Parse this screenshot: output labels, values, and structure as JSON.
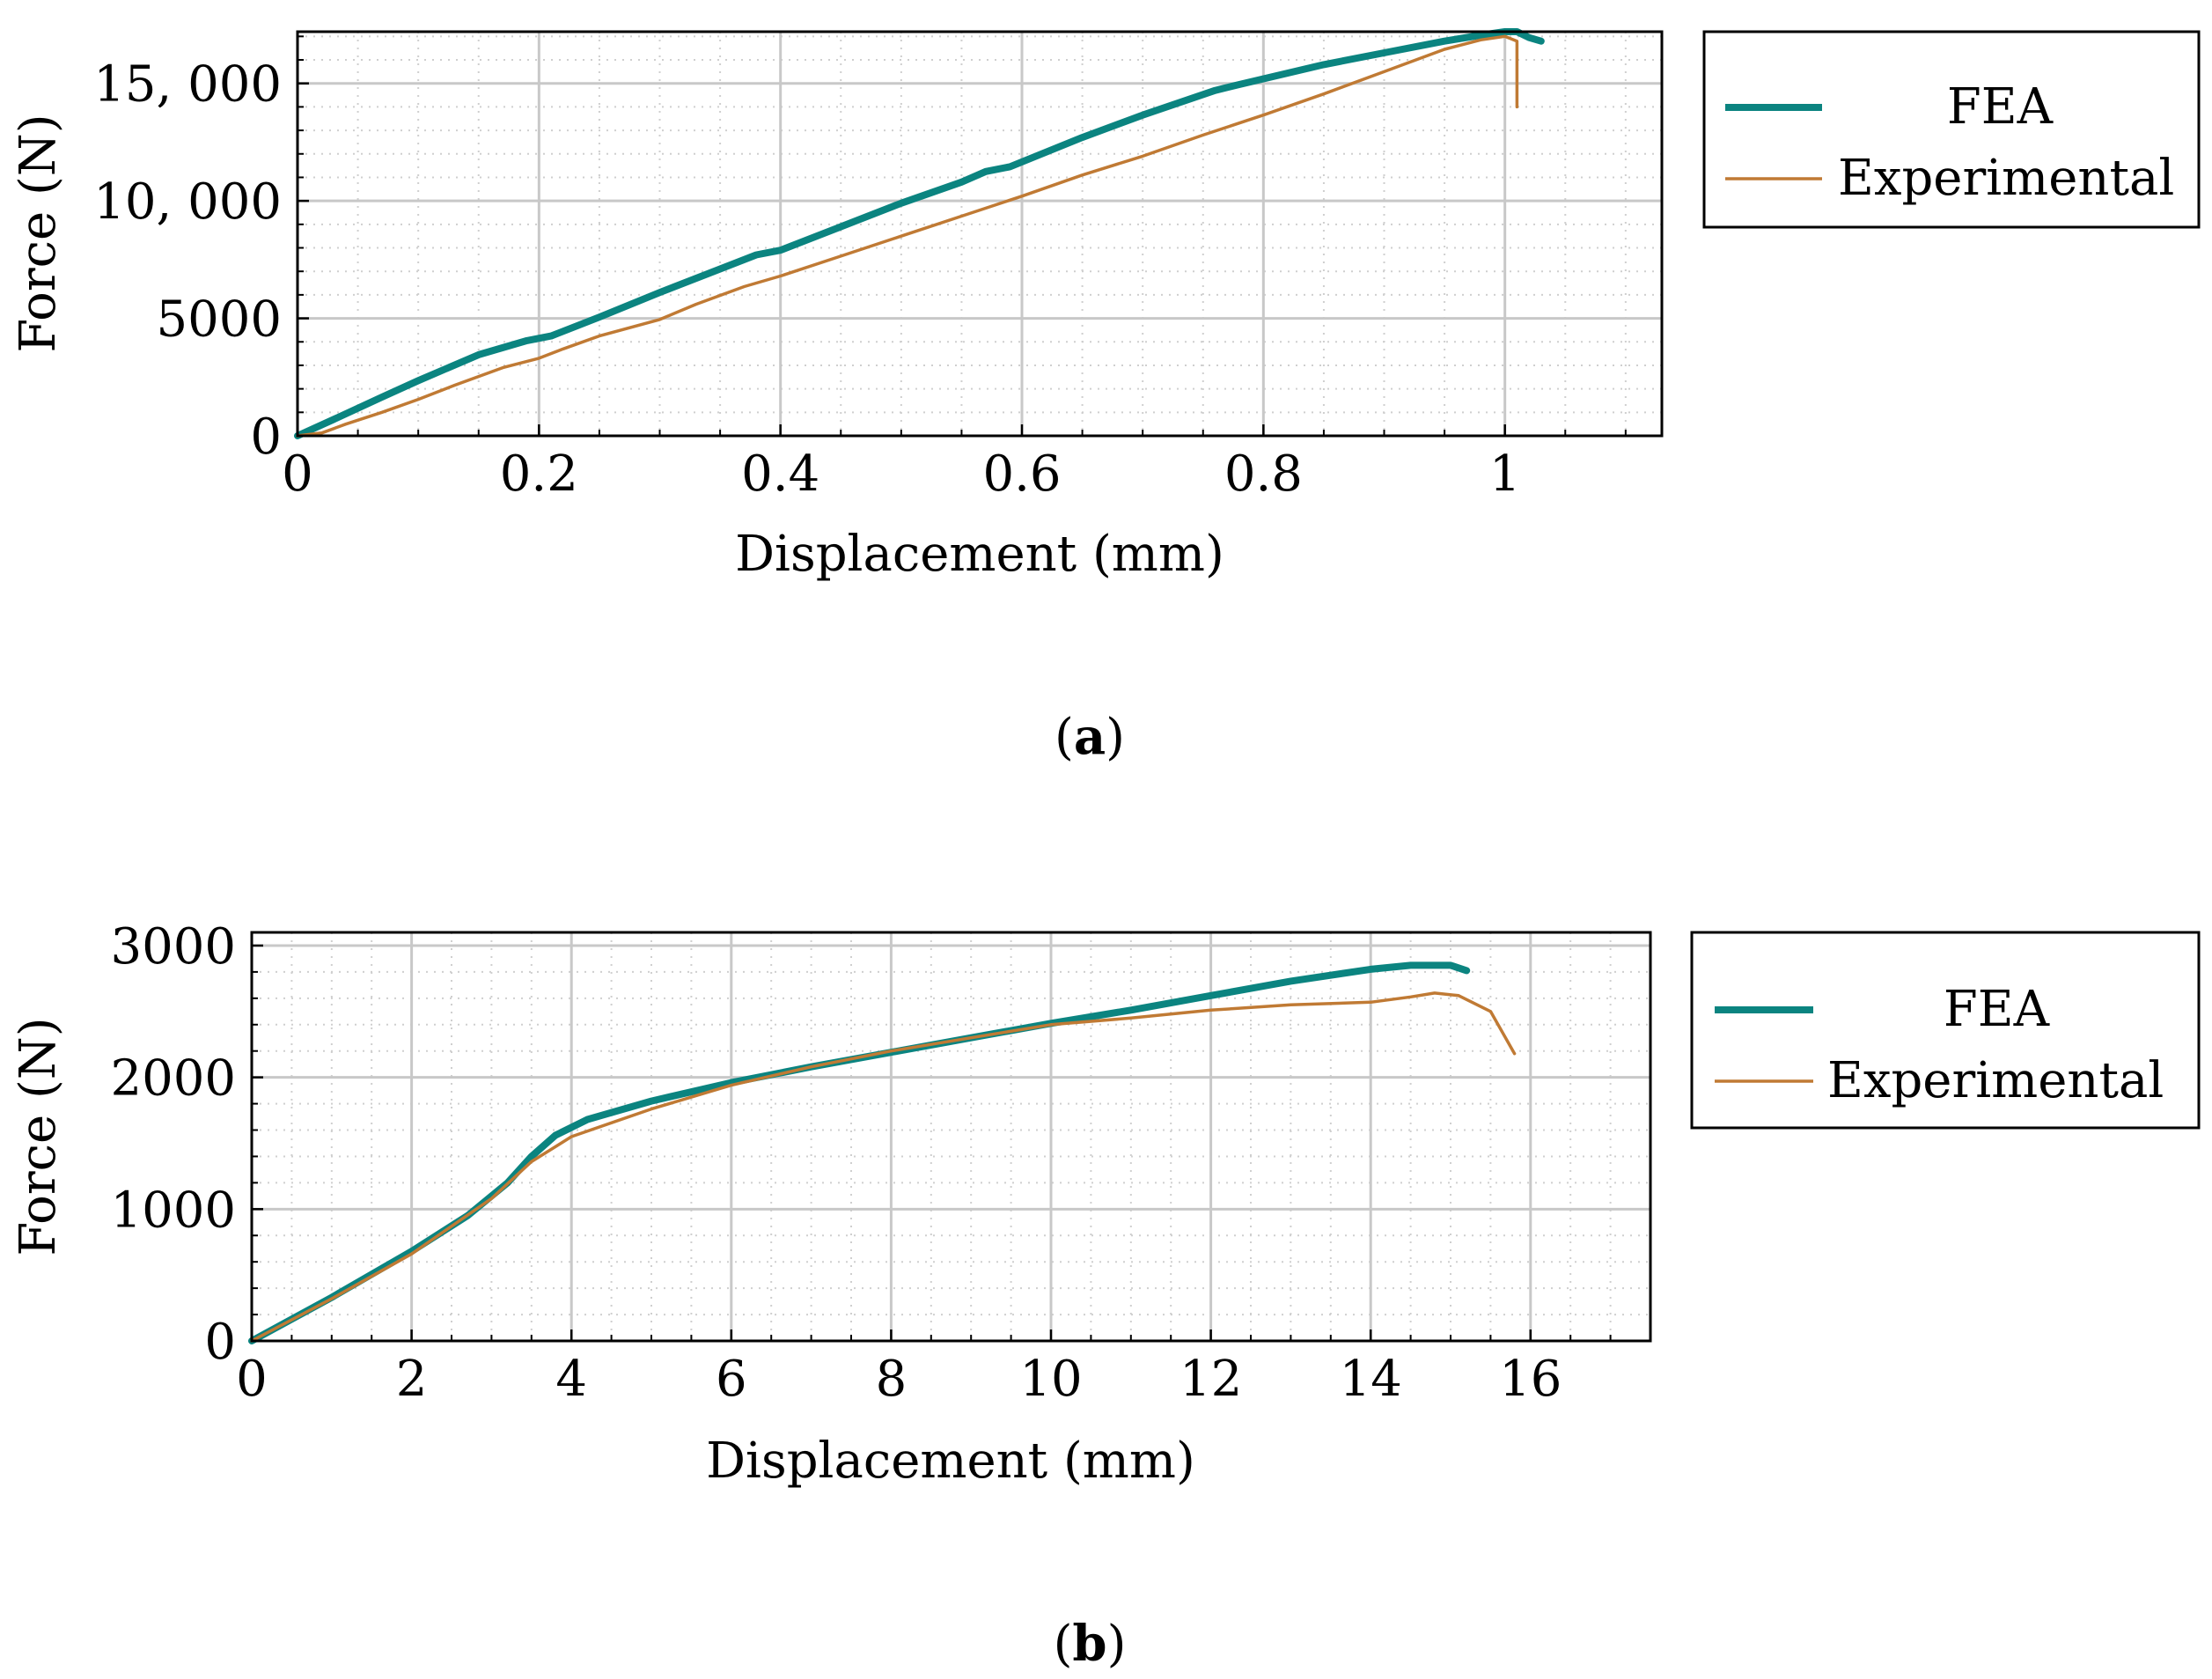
{
  "colors": {
    "fea": "#0b8480",
    "experimental": "#c07a34",
    "grid_major": "#c8c8c8",
    "grid_minor": "#cfcfcf",
    "axis": "#000000"
  },
  "chart_data": [
    {
      "type": "line",
      "caption": "(a)",
      "caption_letter": "a",
      "xlabel": "Displacement (mm)",
      "ylabel": "Force (N)",
      "xlim": [
        0,
        1.13
      ],
      "ylim": [
        0,
        17200
      ],
      "xticks": [
        0,
        0.2,
        0.4,
        0.6,
        0.8,
        1
      ],
      "xtick_labels": [
        "0",
        "0.2",
        "0.4",
        "0.6",
        "0.8",
        "1"
      ],
      "yticks": [
        0,
        5000,
        10000,
        15000
      ],
      "ytick_labels": [
        "0",
        "5000",
        "10, 000",
        "15, 000"
      ],
      "grid": "major and minor",
      "legend_position": "outside right",
      "series": [
        {
          "name": "FEA",
          "color_key": "fea",
          "x": [
            0,
            0.03,
            0.07,
            0.1,
            0.15,
            0.19,
            0.21,
            0.25,
            0.3,
            0.35,
            0.38,
            0.4,
            0.45,
            0.5,
            0.55,
            0.57,
            0.59,
            0.65,
            0.7,
            0.76,
            0.78,
            0.85,
            0.9,
            0.95,
            0.98,
            1.0,
            1.01,
            1.02,
            1.03
          ],
          "y": [
            0,
            700,
            1650,
            2350,
            3450,
            4050,
            4250,
            5050,
            6100,
            7100,
            7700,
            7900,
            8900,
            9900,
            10800,
            11250,
            11450,
            12700,
            13650,
            14700,
            14950,
            15800,
            16300,
            16800,
            17050,
            17200,
            17200,
            16950,
            16800
          ]
        },
        {
          "name": "Experimental",
          "color_key": "experimental",
          "x": [
            0,
            0.02,
            0.04,
            0.07,
            0.1,
            0.13,
            0.17,
            0.2,
            0.22,
            0.25,
            0.3,
            0.33,
            0.37,
            0.4,
            0.45,
            0.5,
            0.55,
            0.6,
            0.65,
            0.7,
            0.75,
            0.8,
            0.85,
            0.9,
            0.95,
            0.98,
            1.0,
            1.005,
            1.01,
            1.01
          ],
          "y": [
            0,
            120,
            500,
            1000,
            1550,
            2150,
            2900,
            3300,
            3700,
            4250,
            4950,
            5600,
            6350,
            6800,
            7650,
            8500,
            9350,
            10200,
            11100,
            11900,
            12800,
            13650,
            14550,
            15500,
            16450,
            16850,
            17000,
            16900,
            16800,
            14000
          ]
        }
      ]
    },
    {
      "type": "line",
      "caption": "(b)",
      "caption_letter": "b",
      "xlabel": "Displacement (mm)",
      "ylabel": "Force (N)",
      "xlim": [
        0,
        17.5
      ],
      "ylim": [
        0,
        3100
      ],
      "xticks": [
        0,
        2,
        4,
        6,
        8,
        10,
        12,
        14,
        16
      ],
      "xtick_labels": [
        "0",
        "2",
        "4",
        "6",
        "8",
        "10",
        "12",
        "14",
        "16"
      ],
      "yticks": [
        0,
        1000,
        2000,
        3000
      ],
      "ytick_labels": [
        "0",
        "1000",
        "2000",
        "3000"
      ],
      "grid": "major and minor",
      "legend_position": "outside right",
      "series": [
        {
          "name": "FEA",
          "color_key": "fea",
          "x": [
            0,
            1,
            2,
            2.7,
            3.2,
            3.5,
            3.8,
            4.2,
            5,
            6,
            7,
            8,
            9,
            10,
            11,
            12,
            13,
            14,
            14.5,
            15,
            15.2
          ],
          "y": [
            0,
            330,
            680,
            950,
            1200,
            1400,
            1560,
            1680,
            1820,
            1960,
            2080,
            2190,
            2300,
            2410,
            2510,
            2620,
            2730,
            2820,
            2850,
            2850,
            2810
          ]
        },
        {
          "name": "Experimental",
          "color_key": "experimental",
          "x": [
            0,
            1,
            2,
            3,
            3.5,
            4,
            5,
            6,
            7,
            8,
            9,
            10,
            11,
            12,
            13,
            14,
            14.5,
            14.8,
            15.1,
            15.5,
            15.8
          ],
          "y": [
            0,
            320,
            660,
            1080,
            1360,
            1550,
            1760,
            1940,
            2080,
            2200,
            2300,
            2400,
            2450,
            2510,
            2550,
            2570,
            2610,
            2640,
            2620,
            2500,
            2180
          ]
        }
      ]
    }
  ]
}
